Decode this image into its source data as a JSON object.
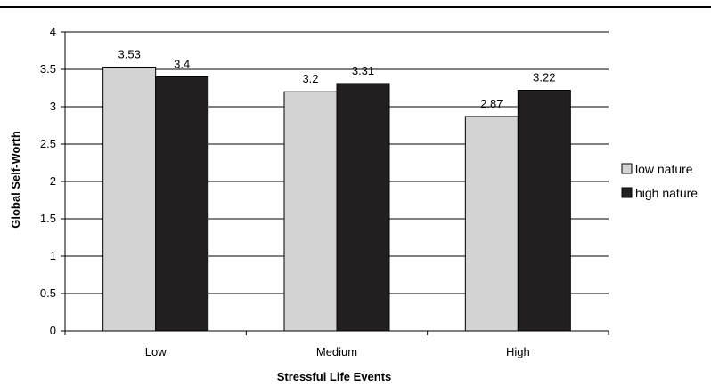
{
  "chart_data": {
    "type": "bar",
    "categories": [
      "Low",
      "Medium",
      "High"
    ],
    "series": [
      {
        "name": "low nature",
        "values": [
          3.53,
          3.2,
          2.87
        ],
        "color": "#d3d3d3"
      },
      {
        "name": "high nature",
        "values": [
          3.4,
          3.31,
          3.22
        ],
        "color": "#231f20"
      }
    ],
    "data_labels": [
      [
        "3.53",
        "3.2",
        "2.87"
      ],
      [
        "3.4",
        "3.31",
        "3.22"
      ]
    ],
    "y_ticks": [
      "0",
      "0.5",
      "1",
      "1.5",
      "2",
      "2.5",
      "3",
      "3.5",
      "4"
    ],
    "title": "",
    "xlabel": "Stressful Life Events",
    "ylabel": "Global Self-Worth",
    "ylim": [
      0,
      4
    ],
    "grid": true,
    "legend_position": "right"
  }
}
